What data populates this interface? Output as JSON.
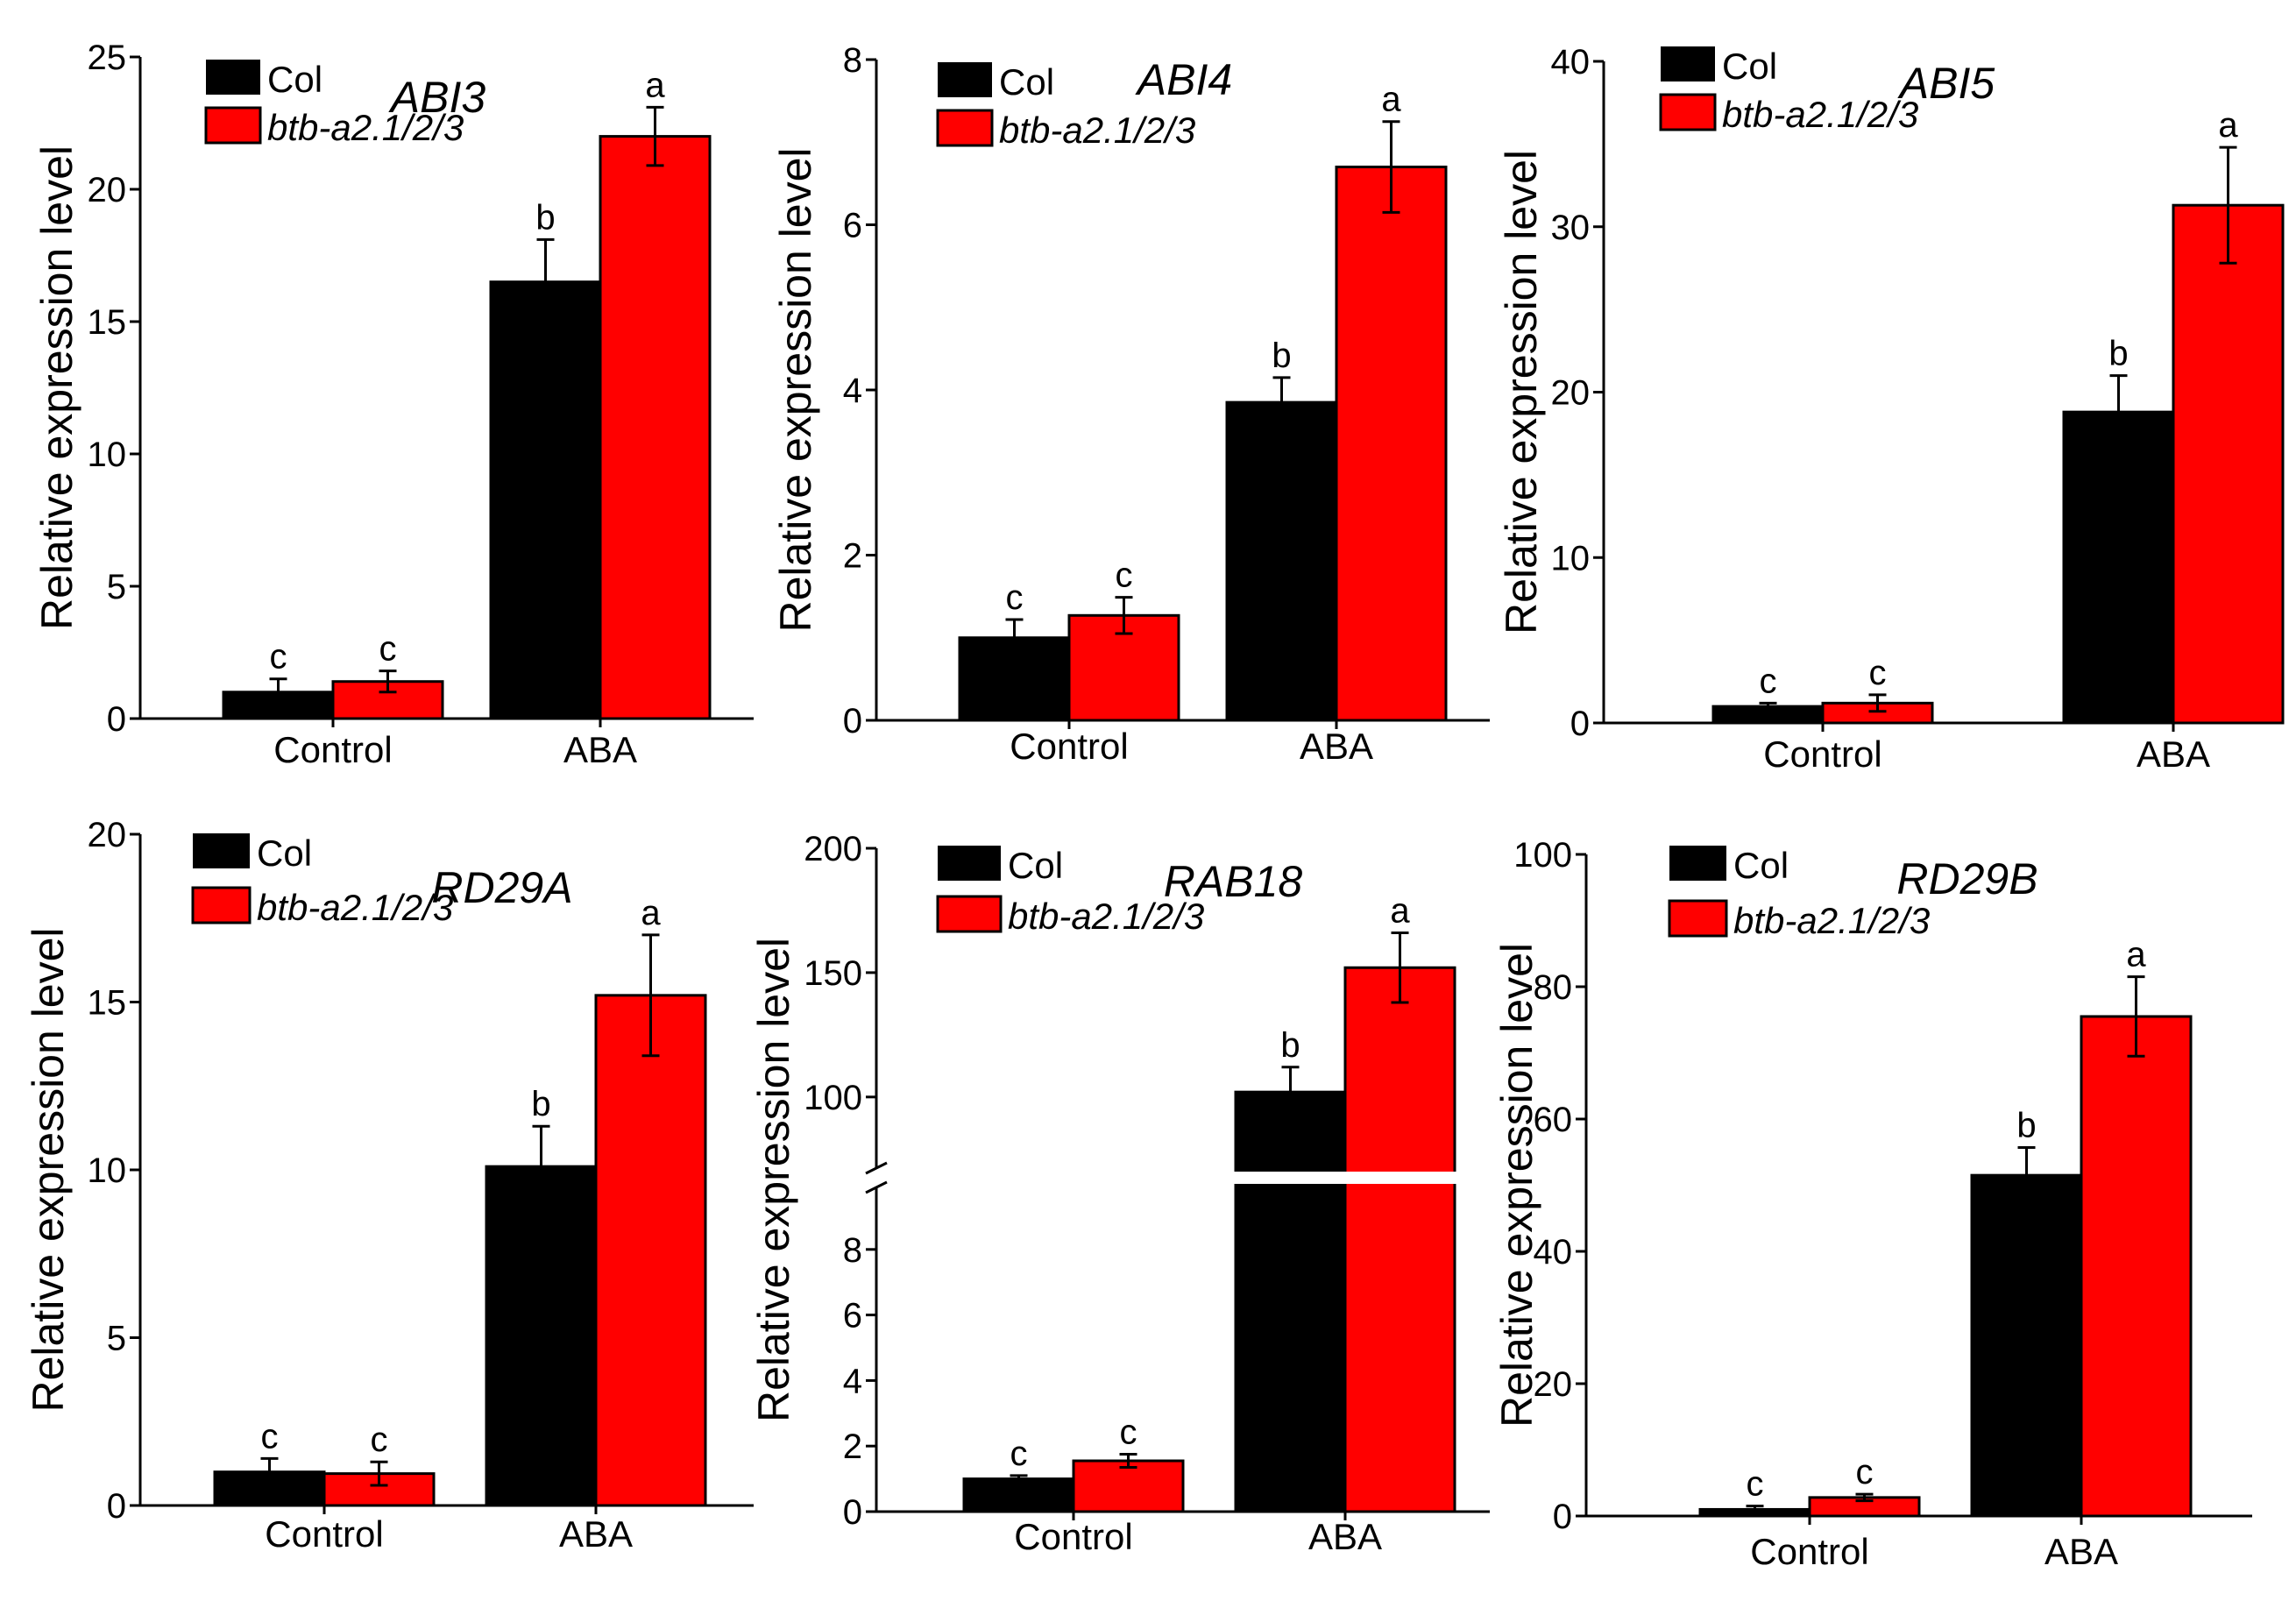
{
  "colors": {
    "col": "#000000",
    "mutant": "#ff0000",
    "axis": "#000000"
  },
  "chart_data": [
    {
      "type": "bar",
      "title": "ABI3",
      "ylabel": "Relative expression level",
      "categories": [
        "Control",
        "ABA"
      ],
      "ylim": [
        0,
        25
      ],
      "yticks": [
        0,
        5,
        10,
        15,
        20,
        25
      ],
      "series": [
        {
          "name": "Col",
          "values": [
            1.0,
            16.5
          ],
          "errors": [
            0.5,
            1.6
          ],
          "letters": [
            "c",
            "b"
          ]
        },
        {
          "name": "btb-a2.1/2/3",
          "values": [
            1.4,
            22.0
          ],
          "errors": [
            0.4,
            1.1
          ],
          "letters": [
            "c",
            "a"
          ]
        }
      ]
    },
    {
      "type": "bar",
      "title": "ABI4",
      "ylabel": "Relative expression level",
      "categories": [
        "Control",
        "ABA"
      ],
      "ylim": [
        0,
        8
      ],
      "yticks": [
        0,
        2,
        4,
        6,
        8
      ],
      "series": [
        {
          "name": "Col",
          "values": [
            1.0,
            3.85
          ],
          "errors": [
            0.22,
            0.3
          ],
          "letters": [
            "c",
            "b"
          ]
        },
        {
          "name": "btb-a2.1/2/3",
          "values": [
            1.27,
            6.7
          ],
          "errors": [
            0.22,
            0.55
          ],
          "letters": [
            "c",
            "a"
          ]
        }
      ]
    },
    {
      "type": "bar",
      "title": "ABI5",
      "ylabel": "Relative expression level",
      "categories": [
        "Control",
        "ABA"
      ],
      "ylim": [
        0,
        40
      ],
      "yticks": [
        0,
        10,
        20,
        30,
        40
      ],
      "series": [
        {
          "name": "Col",
          "values": [
            1.0,
            18.8
          ],
          "errors": [
            0.2,
            2.2
          ],
          "letters": [
            "c",
            "b"
          ]
        },
        {
          "name": "btb-a2.1/2/3",
          "values": [
            1.2,
            31.3
          ],
          "errors": [
            0.5,
            3.5
          ],
          "letters": [
            "c",
            "a"
          ]
        }
      ]
    },
    {
      "type": "bar",
      "title": "RD29A",
      "ylabel": "Relative expression level",
      "categories": [
        "Control",
        "ABA"
      ],
      "ylim": [
        0,
        20
      ],
      "yticks": [
        0,
        5,
        10,
        15,
        20
      ],
      "series": [
        {
          "name": "Col",
          "values": [
            1.0,
            10.1
          ],
          "errors": [
            0.4,
            1.2
          ],
          "letters": [
            "c",
            "b"
          ]
        },
        {
          "name": "btb-a2.1/2/3",
          "values": [
            0.95,
            15.2
          ],
          "errors": [
            0.35,
            1.8
          ],
          "letters": [
            "c",
            "a"
          ]
        }
      ]
    },
    {
      "type": "bar",
      "title": "RAB18",
      "ylabel": "Relative expression level",
      "categories": [
        "Control",
        "ABA"
      ],
      "axis_break": true,
      "lower_ylim": [
        0,
        10
      ],
      "lower_yticks": [
        0,
        2,
        4,
        6,
        8
      ],
      "upper_ylim": [
        70,
        200
      ],
      "upper_yticks": [
        100,
        150,
        200
      ],
      "series": [
        {
          "name": "Col",
          "values": [
            1.0,
            102
          ],
          "errors": [
            0.1,
            10
          ],
          "letters": [
            "c",
            "b"
          ]
        },
        {
          "name": "btb-a2.1/2/3",
          "values": [
            1.55,
            152
          ],
          "errors": [
            0.2,
            14
          ],
          "letters": [
            "c",
            "a"
          ]
        }
      ]
    },
    {
      "type": "bar",
      "title": "RD29B",
      "ylabel": "Relative expression level",
      "categories": [
        "Control",
        "ABA"
      ],
      "ylim": [
        0,
        100
      ],
      "yticks": [
        0,
        20,
        40,
        60,
        80,
        100
      ],
      "series": [
        {
          "name": "Col",
          "values": [
            1.0,
            51.5
          ],
          "errors": [
            0.5,
            4.2
          ],
          "letters": [
            "c",
            "b"
          ]
        },
        {
          "name": "btb-a2.1/2/3",
          "values": [
            2.8,
            75.5
          ],
          "errors": [
            0.5,
            6.0
          ],
          "letters": [
            "c",
            "a"
          ]
        }
      ]
    }
  ]
}
